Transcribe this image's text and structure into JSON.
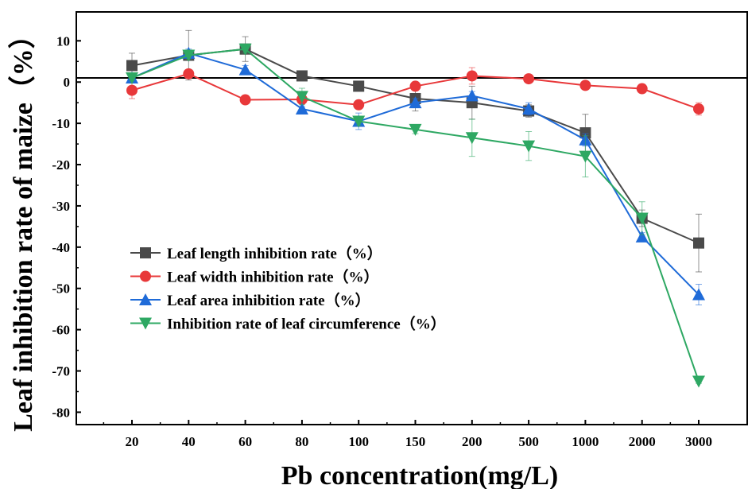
{
  "chart_data": {
    "type": "line",
    "xlabel": "Pb concentration(mg/L)",
    "ylabel": "Leaf inhibition rate of maize（%）",
    "categories": [
      "20",
      "40",
      "60",
      "80",
      "100",
      "150",
      "200",
      "500",
      "1000",
      "2000",
      "3000"
    ],
    "ylim": [
      -83,
      17
    ],
    "yticks": [
      10,
      0,
      -10,
      -20,
      -30,
      -40,
      -50,
      -60,
      -70,
      -80
    ],
    "ytick_labels": [
      "10",
      "0",
      "-10",
      "-20",
      "-30",
      "-40",
      "-50",
      "-60",
      "-70",
      "-80"
    ],
    "reference_line": 1,
    "grid": false,
    "legend_position": "left-middle",
    "series": [
      {
        "name": "Leaf length inhibition rate（%）",
        "color": "#4a4a4a",
        "marker": "square",
        "values": [
          4,
          6.5,
          8,
          1.5,
          -1,
          -4,
          -5,
          -7,
          -12.3,
          -33,
          -39
        ],
        "errors": [
          3,
          6,
          3,
          1,
          1,
          3,
          4,
          1.5,
          4.5,
          2,
          7
        ]
      },
      {
        "name": "Leaf width inhibition rate（%）",
        "color": "#e8383a",
        "marker": "circle",
        "values": [
          -2,
          2,
          -4.3,
          -4.2,
          -5.5,
          -1,
          1.5,
          0.8,
          -0.8,
          -1.6,
          -6.5
        ],
        "errors": [
          2,
          1,
          0.5,
          0.5,
          0.5,
          0.5,
          2,
          0.5,
          0.5,
          0.5,
          1.5
        ]
      },
      {
        "name": "Leaf area inhibition rate（%）",
        "color": "#1f6bd8",
        "marker": "triangle-up",
        "values": [
          1,
          7,
          3,
          -6.5,
          -9.5,
          -5,
          -3.3,
          -6.5,
          -14,
          -37.5,
          -51.5
        ],
        "errors": [
          1,
          1,
          1,
          0.5,
          2,
          1,
          1,
          1.5,
          1.5,
          1,
          2.5
        ]
      },
      {
        "name": "Inhibition rate of leaf circumference（%）",
        "color": "#2ea863",
        "marker": "triangle-down",
        "values": [
          1,
          6.5,
          8,
          -3.5,
          -9.5,
          -11.5,
          -13.5,
          -15.5,
          -18,
          -33,
          -72.5
        ],
        "errors": [
          0.5,
          1,
          1,
          2,
          1,
          1,
          4.5,
          3.5,
          5,
          4,
          0.5
        ]
      }
    ]
  }
}
